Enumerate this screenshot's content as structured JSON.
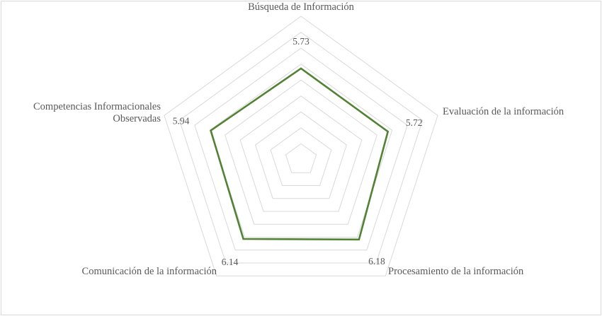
{
  "chart_data": {
    "type": "radar",
    "title": "",
    "axes": [
      "Búsqueda de Información",
      "Evaluación de la información",
      "Procesamiento de la información",
      "Comunicación de la información",
      "Competencias Informacionales Observadas"
    ],
    "axis_label_lines": [
      [
        "Búsqueda de Información"
      ],
      [
        "Evaluación de la información"
      ],
      [
        "Procesamiento de la información"
      ],
      [
        "Comunicación de la información"
      ],
      [
        "Competencias Informacionales",
        "Observadas"
      ]
    ],
    "series": [
      {
        "values": [
          5.73,
          5.72,
          6.18,
          6.14,
          5.94
        ],
        "color": "#548235"
      }
    ],
    "data_labels": [
      "5.73",
      "5.72",
      "6.18",
      "6.14",
      "5.94"
    ],
    "rlim": [
      0,
      9
    ],
    "grid_rings": 9,
    "grid": true,
    "grid_color": "#d9d9d9",
    "legend": "none"
  }
}
